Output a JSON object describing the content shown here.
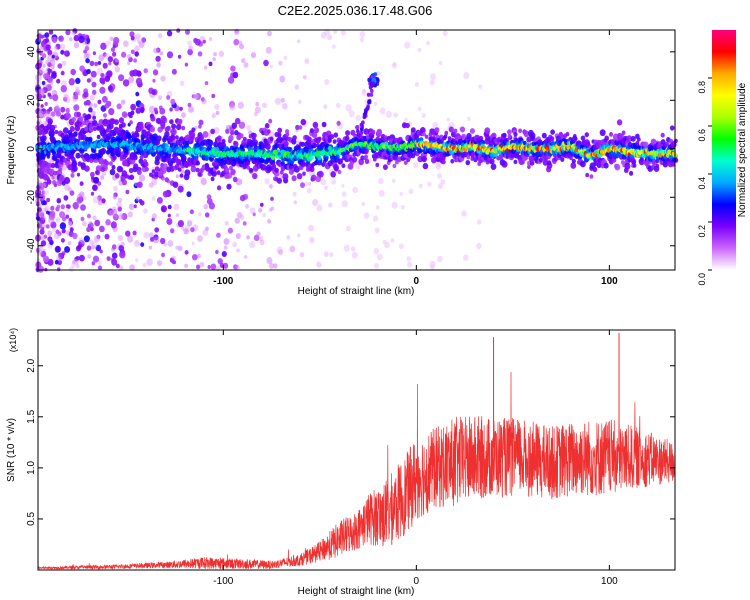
{
  "figure": {
    "title": "C2E2.2025.036.17.48.G06"
  },
  "chart_data": [
    {
      "type": "heatmap",
      "title": "C2E2.2025.036.17.48.G06",
      "xlabel": "Height of straight line (km)",
      "ylabel": "Frequency (Hz)",
      "xlim": [
        -196,
        134
      ],
      "ylim": [
        -50,
        49
      ],
      "x_ticks": [
        -100,
        0,
        100
      ],
      "y_ticks": [
        -40,
        -20,
        0,
        20,
        40
      ],
      "colorbar": {
        "label": "Normalized spectral amplitude",
        "range": [
          0,
          1
        ],
        "ticks": [
          "0.0",
          "0.2",
          "0.4",
          "0.6",
          "0.8"
        ],
        "colors": [
          "#ffffff",
          "#cc66ff",
          "#7a00ff",
          "#0000ff",
          "#00aaff",
          "#00ffd0",
          "#00ff00",
          "#aaff00",
          "#ffff00",
          "#ffaa00",
          "#ff0000",
          "#ff0080"
        ]
      },
      "ridge_center_hz": [
        [
          -196,
          0
        ],
        [
          -160,
          2
        ],
        [
          -130,
          0
        ],
        [
          -100,
          -2
        ],
        [
          -80,
          -2
        ],
        [
          -60,
          -3
        ],
        [
          -40,
          -1
        ],
        [
          -30,
          2
        ],
        [
          -20,
          1
        ],
        [
          -10,
          0
        ],
        [
          0,
          2
        ],
        [
          10,
          1
        ],
        [
          20,
          0
        ],
        [
          30,
          1
        ],
        [
          40,
          -1
        ],
        [
          50,
          1
        ],
        [
          60,
          0
        ],
        [
          70,
          0
        ],
        [
          80,
          1
        ],
        [
          90,
          -3
        ],
        [
          100,
          0
        ],
        [
          110,
          -1
        ],
        [
          120,
          -2
        ],
        [
          134,
          -2
        ]
      ],
      "peak_feature": {
        "x": -22,
        "y": 28
      }
    },
    {
      "type": "line",
      "xlabel": "Height of straight line (km)",
      "ylabel": "SNR (10 * v/v)",
      "y_scale_note": "(x10⁴)",
      "xlim": [
        -196,
        134
      ],
      "ylim": [
        0,
        2.35
      ],
      "x_ticks": [
        -100,
        0,
        100
      ],
      "y_ticks": [
        "0.5",
        "1.0",
        "1.5",
        "2.0"
      ],
      "color": "#ee3030",
      "envelope": {
        "x": [
          -196,
          -160,
          -130,
          -110,
          -90,
          -75,
          -60,
          -50,
          -40,
          -30,
          -25,
          -15,
          -5,
          0,
          10,
          20,
          30,
          40,
          55,
          70,
          85,
          100,
          115,
          134
        ],
        "mean": [
          0.02,
          0.03,
          0.05,
          0.07,
          0.06,
          0.05,
          0.1,
          0.18,
          0.3,
          0.4,
          0.5,
          0.55,
          0.75,
          0.9,
          1.0,
          1.05,
          1.1,
          1.1,
          1.1,
          1.05,
          1.1,
          1.1,
          1.1,
          1.05
        ],
        "spread": [
          0.01,
          0.02,
          0.03,
          0.06,
          0.05,
          0.04,
          0.06,
          0.1,
          0.18,
          0.2,
          0.25,
          0.35,
          0.4,
          0.42,
          0.4,
          0.45,
          0.42,
          0.4,
          0.38,
          0.36,
          0.38,
          0.38,
          0.3,
          0.2
        ]
      },
      "peaks": [
        {
          "x": 40,
          "y": 2.28
        },
        {
          "x": 105,
          "y": 2.32
        }
      ]
    }
  ]
}
